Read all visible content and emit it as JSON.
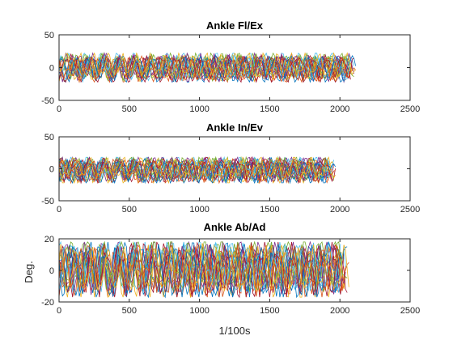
{
  "chart_data": [
    {
      "type": "line",
      "title": "Ankle Fl/Ex",
      "xlabel": "",
      "ylabel": "",
      "xlim": [
        0,
        2500
      ],
      "ylim": [
        -50,
        50
      ],
      "xticks": [
        0,
        500,
        1000,
        1500,
        2000,
        2500
      ],
      "yticks": [
        -50,
        0,
        50
      ],
      "series_count": 24,
      "series_length_range": [
        1900,
        2130
      ],
      "value_range": [
        -22,
        22
      ],
      "grid": false
    },
    {
      "type": "line",
      "title": "Ankle In/Ev",
      "xlabel": "",
      "ylabel": "",
      "xlim": [
        0,
        2500
      ],
      "ylim": [
        -50,
        50
      ],
      "xticks": [
        0,
        500,
        1000,
        1500,
        2000,
        2500
      ],
      "yticks": [
        -50,
        0,
        50
      ],
      "series_count": 24,
      "series_length_range": [
        1900,
        2130
      ],
      "value_range": [
        -22,
        18
      ],
      "grid": false
    },
    {
      "type": "line",
      "title": "Ankle Ab/Ad",
      "xlabel": "1/100s",
      "ylabel": "Deg.",
      "xlim": [
        0,
        2500
      ],
      "ylim": [
        -20,
        20
      ],
      "xticks": [
        0,
        500,
        1000,
        1500,
        2000,
        2500
      ],
      "yticks": [
        -20,
        0,
        20
      ],
      "series_count": 24,
      "series_length_range": [
        1900,
        2130
      ],
      "value_range": [
        -17,
        18
      ],
      "grid": false
    }
  ],
  "colors": [
    "#0072BD",
    "#D95319",
    "#EDB120",
    "#7E2F8E",
    "#77AC30",
    "#4DBEEE",
    "#A2142F"
  ]
}
